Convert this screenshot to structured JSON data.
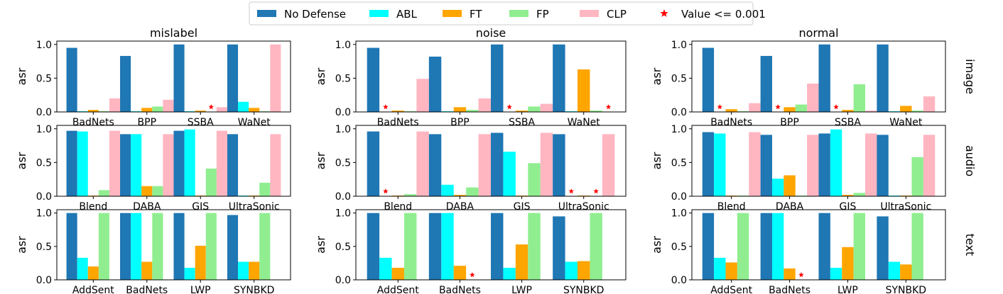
{
  "chart_data": {
    "type": "bar",
    "ylabel": "asr",
    "ylim": [
      0,
      1.05
    ],
    "yticks": [
      0.0,
      0.5,
      1.0
    ],
    "tick_labels": [
      "0.0",
      "0.5",
      "1.0"
    ],
    "columns": [
      "mislabel",
      "noise",
      "normal"
    ],
    "rows": [
      "image",
      "audio",
      "text"
    ],
    "legend": {
      "placement": "top-center",
      "entries": [
        {
          "name": "No Defense",
          "color": "#1f77b4",
          "marker": "patch"
        },
        {
          "name": "ABL",
          "color": "#00ffff",
          "marker": "patch"
        },
        {
          "name": "FT",
          "color": "#ffa500",
          "marker": "patch"
        },
        {
          "name": "FP",
          "color": "#90ee90",
          "marker": "patch"
        },
        {
          "name": "CLP",
          "color": "#ffb6c1",
          "marker": "patch"
        },
        {
          "name": "Value <= 0.001",
          "color": "#ff0000",
          "marker": "star"
        }
      ]
    },
    "series_names": [
      "No Defense",
      "ABL",
      "FT",
      "FP",
      "CLP"
    ],
    "series_colors": [
      "#1f77b4",
      "#00ffff",
      "#ffa500",
      "#90ee90",
      "#ffb6c1"
    ],
    "panels": [
      {
        "row": "image",
        "column": "mislabel",
        "categories": [
          "BadNets",
          "BPP",
          "SSBA",
          "WaNet"
        ],
        "values": [
          [
            0.95,
            0.01,
            0.03,
            0.01,
            0.2
          ],
          [
            0.83,
            0.01,
            0.06,
            0.08,
            0.18
          ],
          [
            1.0,
            0.01,
            0.02,
            0.0,
            0.07
          ],
          [
            1.0,
            0.15,
            0.06,
            0.01,
            1.0
          ]
        ]
      },
      {
        "row": "image",
        "column": "noise",
        "categories": [
          "BadNets",
          "BPP",
          "SSBA",
          "WaNet"
        ],
        "values": [
          [
            0.95,
            0.0,
            0.02,
            0.01,
            0.49
          ],
          [
            0.82,
            0.01,
            0.07,
            0.03,
            0.2
          ],
          [
            1.0,
            0.0,
            0.02,
            0.08,
            0.12
          ],
          [
            1.0,
            0.01,
            0.63,
            0.02,
            0.0
          ]
        ]
      },
      {
        "row": "image",
        "column": "normal",
        "categories": [
          "BadNets",
          "BPP",
          "SSBA",
          "WaNet"
        ],
        "values": [
          [
            0.95,
            0.0,
            0.04,
            0.01,
            0.13
          ],
          [
            0.83,
            0.0,
            0.07,
            0.11,
            0.42
          ],
          [
            1.0,
            0.0,
            0.03,
            0.41,
            0.02
          ],
          [
            1.0,
            0.01,
            0.09,
            0.02,
            0.23
          ]
        ]
      },
      {
        "row": "audio",
        "column": "mislabel",
        "categories": [
          "Blend",
          "DABA",
          "GIS",
          "UltraSonic"
        ],
        "values": [
          [
            0.97,
            0.96,
            0.01,
            0.09,
            0.97
          ],
          [
            0.92,
            0.92,
            0.15,
            0.15,
            0.92
          ],
          [
            0.97,
            0.99,
            0.01,
            0.41,
            0.97
          ],
          [
            0.92,
            0.01,
            0.01,
            0.2,
            0.92
          ]
        ]
      },
      {
        "row": "audio",
        "column": "noise",
        "categories": [
          "Blend",
          "DABA",
          "GIS",
          "UltraSonic"
        ],
        "values": [
          [
            0.96,
            0.0,
            0.01,
            0.03,
            0.96
          ],
          [
            0.92,
            0.17,
            0.02,
            0.13,
            0.92
          ],
          [
            0.94,
            0.66,
            0.01,
            0.49,
            0.94
          ],
          [
            0.92,
            0.0,
            0.01,
            0.0,
            0.92
          ]
        ]
      },
      {
        "row": "audio",
        "column": "normal",
        "categories": [
          "Blend",
          "DABA",
          "GIS",
          "UltraSonic"
        ],
        "values": [
          [
            0.95,
            0.93,
            0.01,
            0.01,
            0.95
          ],
          [
            0.91,
            0.26,
            0.31,
            0.01,
            0.91
          ],
          [
            0.93,
            0.99,
            0.02,
            0.05,
            0.93
          ],
          [
            0.91,
            0.01,
            0.01,
            0.58,
            0.91
          ]
        ]
      },
      {
        "row": "text",
        "column": "mislabel",
        "categories": [
          "AddSent",
          "BadNets",
          "LWP",
          "SYNBKD"
        ],
        "values": [
          [
            1.0,
            0.33,
            0.2,
            1.0,
            0.0
          ],
          [
            1.0,
            1.0,
            0.27,
            1.0,
            0.0
          ],
          [
            1.0,
            0.18,
            0.51,
            1.0,
            0.0
          ],
          [
            0.97,
            0.27,
            0.27,
            1.0,
            0.0
          ]
        ]
      },
      {
        "row": "text",
        "column": "noise",
        "categories": [
          "AddSent",
          "BadNets",
          "LWP",
          "SYNBKD"
        ],
        "values": [
          [
            1.0,
            0.33,
            0.18,
            1.0,
            0.0
          ],
          [
            1.0,
            1.0,
            0.21,
            0.0,
            0.0
          ],
          [
            1.0,
            0.18,
            0.53,
            1.0,
            0.0
          ],
          [
            0.95,
            0.27,
            0.28,
            1.0,
            0.0
          ]
        ]
      },
      {
        "row": "text",
        "column": "normal",
        "categories": [
          "AddSent",
          "BadNets",
          "LWP",
          "SYNBKD"
        ],
        "values": [
          [
            1.0,
            0.33,
            0.26,
            1.0,
            0.0
          ],
          [
            1.0,
            1.0,
            0.17,
            0.0,
            0.0
          ],
          [
            1.0,
            0.18,
            0.49,
            1.0,
            0.0
          ],
          [
            0.95,
            0.27,
            0.23,
            1.0,
            0.0
          ]
        ]
      }
    ],
    "markers": [
      {
        "row": "image",
        "column": "mislabel",
        "category": "SSBA",
        "series": "FP"
      },
      {
        "row": "image",
        "column": "noise",
        "category": "BadNets",
        "series": "ABL"
      },
      {
        "row": "image",
        "column": "noise",
        "category": "SSBA",
        "series": "ABL"
      },
      {
        "row": "image",
        "column": "noise",
        "category": "WaNet",
        "series": "CLP"
      },
      {
        "row": "image",
        "column": "normal",
        "category": "BadNets",
        "series": "ABL"
      },
      {
        "row": "image",
        "column": "normal",
        "category": "BPP",
        "series": "ABL"
      },
      {
        "row": "image",
        "column": "normal",
        "category": "SSBA",
        "series": "ABL"
      },
      {
        "row": "audio",
        "column": "noise",
        "category": "Blend",
        "series": "ABL"
      },
      {
        "row": "audio",
        "column": "noise",
        "category": "UltraSonic",
        "series": "ABL"
      },
      {
        "row": "audio",
        "column": "noise",
        "category": "UltraSonic",
        "series": "FP"
      },
      {
        "row": "text",
        "column": "noise",
        "category": "BadNets",
        "series": "FP"
      },
      {
        "row": "text",
        "column": "normal",
        "category": "BadNets",
        "series": "FP"
      }
    ]
  }
}
